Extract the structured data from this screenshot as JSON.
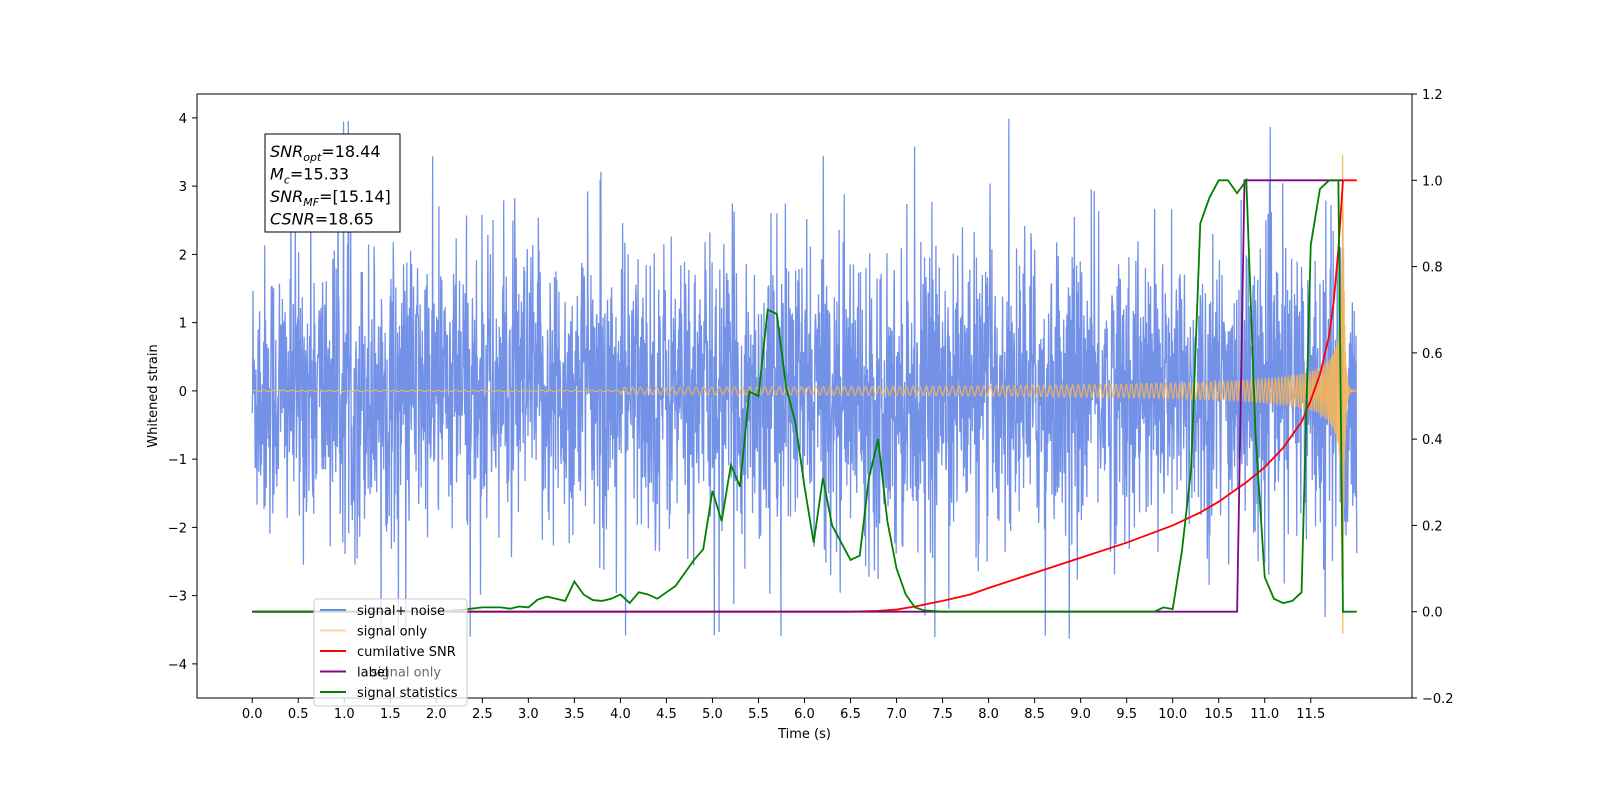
{
  "chart_data": {
    "type": "line",
    "xlabel": "Time (s)",
    "ylabel": "Whitened strain",
    "xlim": [
      -0.6,
      12.6
    ],
    "ylim": [
      -4.5,
      4.35
    ],
    "y2lim": [
      -0.2,
      1.2
    ],
    "grid": false,
    "legend_placement": "lower-left",
    "x_ticks": [
      "0.0",
      "0.5",
      "1.0",
      "1.5",
      "2.0",
      "2.5",
      "3.0",
      "3.5",
      "4.0",
      "4.5",
      "5.0",
      "5.5",
      "6.0",
      "6.5",
      "7.0",
      "7.5",
      "8.0",
      "8.5",
      "9.0",
      "9.5",
      "10.0",
      "10.5",
      "11.0",
      "11.5"
    ],
    "y_ticks": [
      "4",
      "3",
      "2",
      "1",
      "0",
      "−1",
      "−2",
      "−3",
      "−4"
    ],
    "y2_ticks": [
      "1.2",
      "1.0",
      "0.8",
      "0.6",
      "0.4",
      "0.2",
      "0.0",
      "−0.2"
    ],
    "annotation": {
      "lines": [
        {
          "main": "SNR",
          "sub": "opt",
          "value": "=18.44"
        },
        {
          "main": "M",
          "sub": "c",
          "value": "=15.33"
        },
        {
          "main": "SNR",
          "sub": "MF",
          "value": "=[15.14]"
        },
        {
          "main": "CSNR",
          "sub": "",
          "value": "=18.65"
        }
      ]
    },
    "series": [
      {
        "name": "signal+ noise",
        "axis": "left",
        "color": "#6b8ce6",
        "kind": "noise",
        "x_range": [
          0.0,
          12.0
        ],
        "envelope": [
          -3.6,
          3.95
        ]
      },
      {
        "name": "signal only",
        "axis": "left",
        "color": "#f5b55a",
        "kind": "chirp",
        "x_range": [
          0.0,
          12.0
        ],
        "peak": [
          3.45,
          -3.55
        ],
        "merger_time": 11.85
      },
      {
        "name": "cumilative SNR",
        "axis": "right",
        "color": "#ff0000",
        "x": [
          0.0,
          6.5,
          6.8,
          7.0,
          7.2,
          7.5,
          7.8,
          8.0,
          8.5,
          9.0,
          9.5,
          10.0,
          10.3,
          10.5,
          10.8,
          11.0,
          11.2,
          11.4,
          11.5,
          11.6,
          11.7,
          11.75,
          11.8,
          11.85,
          11.9,
          12.0
        ],
        "y": [
          0.0,
          0.0,
          0.002,
          0.005,
          0.012,
          0.025,
          0.04,
          0.055,
          0.09,
          0.125,
          0.16,
          0.2,
          0.23,
          0.255,
          0.3,
          0.335,
          0.38,
          0.44,
          0.49,
          0.55,
          0.64,
          0.72,
          0.84,
          1.0,
          1.0,
          1.0
        ]
      },
      {
        "name": "label",
        "axis": "right",
        "color": "#7b0a82",
        "x": [
          0.0,
          10.7,
          10.78,
          11.85
        ],
        "y": [
          0.0,
          0.0,
          1.0,
          1.0
        ]
      },
      {
        "name": "signal statistics",
        "axis": "right",
        "color": "#008000",
        "x": [
          0.0,
          0.5,
          1.0,
          1.5,
          2.0,
          2.3,
          2.5,
          2.7,
          2.8,
          2.9,
          3.0,
          3.1,
          3.2,
          3.3,
          3.4,
          3.5,
          3.6,
          3.7,
          3.8,
          3.9,
          4.0,
          4.1,
          4.2,
          4.3,
          4.4,
          4.5,
          4.6,
          4.7,
          4.8,
          4.9,
          5.0,
          5.1,
          5.2,
          5.3,
          5.4,
          5.5,
          5.6,
          5.7,
          5.8,
          5.9,
          6.0,
          6.1,
          6.2,
          6.3,
          6.4,
          6.5,
          6.6,
          6.7,
          6.8,
          6.9,
          7.0,
          7.1,
          7.2,
          7.3,
          7.5,
          8.0,
          9.0,
          9.8,
          9.9,
          10.0,
          10.1,
          10.2,
          10.3,
          10.4,
          10.5,
          10.6,
          10.7,
          10.8,
          10.9,
          11.0,
          11.1,
          11.2,
          11.3,
          11.4,
          11.5,
          11.6,
          11.7,
          11.8,
          11.85,
          11.9,
          12.0
        ],
        "y": [
          0.0,
          0.0,
          0.0,
          0.0,
          0.0,
          0.005,
          0.01,
          0.01,
          0.007,
          0.012,
          0.01,
          0.028,
          0.035,
          0.03,
          0.025,
          0.07,
          0.04,
          0.027,
          0.025,
          0.03,
          0.04,
          0.02,
          0.045,
          0.04,
          0.03,
          0.045,
          0.06,
          0.09,
          0.12,
          0.145,
          0.28,
          0.21,
          0.34,
          0.29,
          0.51,
          0.5,
          0.7,
          0.69,
          0.52,
          0.44,
          0.29,
          0.16,
          0.31,
          0.2,
          0.16,
          0.12,
          0.13,
          0.31,
          0.4,
          0.21,
          0.1,
          0.04,
          0.01,
          0.003,
          0.0,
          0.0,
          0.0,
          0.0,
          0.01,
          0.006,
          0.14,
          0.33,
          0.9,
          0.96,
          1.0,
          1.0,
          0.97,
          1.0,
          0.41,
          0.08,
          0.03,
          0.02,
          0.025,
          0.045,
          0.85,
          0.98,
          1.0,
          1.0,
          0.0,
          0.0,
          0.0
        ]
      }
    ],
    "legend": [
      "signal+ noise",
      "signal only",
      "cumilative SNR",
      "label",
      "signal statistics"
    ],
    "legend_hidden_text": "signal only"
  }
}
